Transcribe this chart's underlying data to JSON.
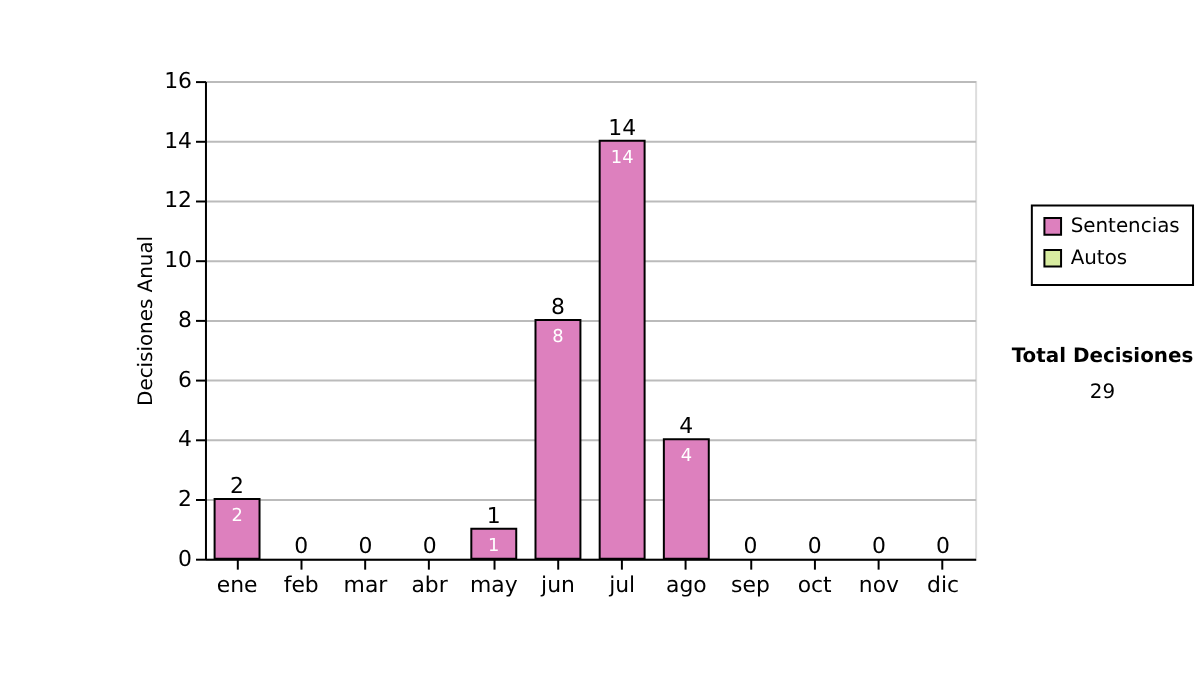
{
  "chart_data": {
    "type": "bar",
    "ylabel": "Decisiones Anual",
    "categories": [
      "ene",
      "feb",
      "mar",
      "abr",
      "may",
      "jun",
      "jul",
      "ago",
      "sep",
      "oct",
      "nov",
      "dic"
    ],
    "stacked": true,
    "series": [
      {
        "name": "Sentencias",
        "color": "#dd80be",
        "values": [
          2,
          0,
          0,
          0,
          1,
          8,
          14,
          4,
          0,
          0,
          0,
          0
        ],
        "value_labels": [
          "2",
          null,
          null,
          null,
          "1",
          "8",
          "14",
          "4",
          null,
          null,
          null,
          null
        ]
      },
      {
        "name": "Autos",
        "color": "#d8eca0",
        "values": [
          0,
          0,
          0,
          0,
          0,
          0,
          0,
          0,
          0,
          0,
          0,
          0
        ]
      }
    ],
    "totals": [
      "2",
      "0",
      "0",
      "0",
      "1",
      "8",
      "14",
      "4",
      "0",
      "0",
      "0",
      "0"
    ],
    "ylim": [
      0,
      16
    ],
    "yticks": [
      0,
      2,
      4,
      6,
      8,
      10,
      12,
      14,
      16
    ],
    "grid": "y",
    "legend": "right",
    "annotations": [
      "Total Decisiones",
      "29"
    ]
  }
}
